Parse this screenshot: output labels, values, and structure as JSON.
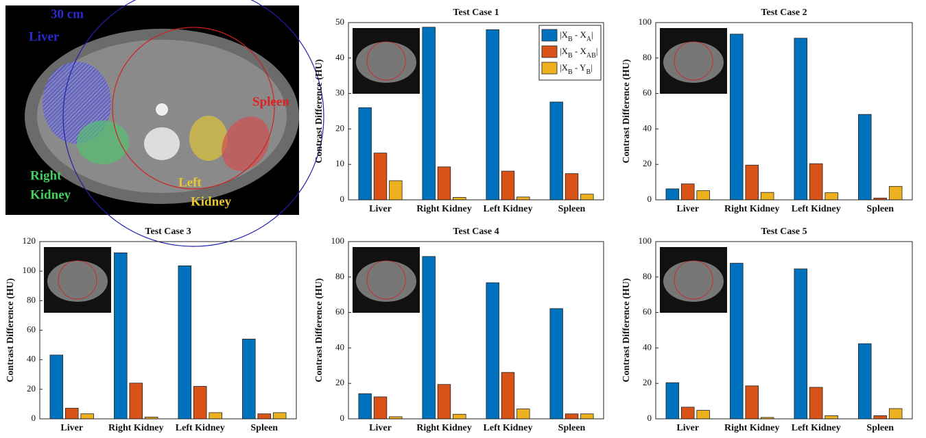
{
  "ct_image": {
    "scale_label": "30 cm",
    "labels": {
      "liver": [
        "Liver"
      ],
      "spleen": [
        "Spleen"
      ],
      "right_kidney": [
        "Right",
        "Kidney"
      ],
      "left_kidney": [
        "Left",
        "Kidney"
      ]
    }
  },
  "chart_data": [
    {
      "type": "bar",
      "title": "Test Case 1",
      "ylabel": "Contrast Difference (HU)",
      "categories": [
        "Liver",
        "Right Kidney",
        "Left Kidney",
        "Spleen"
      ],
      "ylim": [
        0,
        50
      ],
      "yticks": [
        0,
        10,
        20,
        30,
        40,
        50
      ],
      "legend": "upper right",
      "series": [
        {
          "name": "|XB - XA|",
          "color": "#0072BD",
          "values": [
            26,
            48.7,
            48,
            27.6
          ]
        },
        {
          "name": "|XB - XAB|",
          "color": "#D95319",
          "values": [
            13.2,
            9.3,
            8.1,
            7.4
          ]
        },
        {
          "name": "|XB - YB|",
          "color": "#EDB120",
          "values": [
            5.4,
            0.7,
            0.8,
            1.6
          ]
        }
      ]
    },
    {
      "type": "bar",
      "title": "Test Case 2",
      "ylabel": "Contrast Difference (HU)",
      "categories": [
        "Liver",
        "Right Kidney",
        "Left Kidney",
        "Spleen"
      ],
      "ylim": [
        0,
        100
      ],
      "yticks": [
        0,
        20,
        40,
        60,
        80,
        100
      ],
      "series": [
        {
          "color": "#0072BD",
          "values": [
            6.2,
            93.5,
            91.2,
            48.2
          ]
        },
        {
          "color": "#D95319",
          "values": [
            9,
            19.6,
            20.4,
            1
          ]
        },
        {
          "color": "#EDB120",
          "values": [
            5.2,
            4.2,
            4,
            7.6
          ]
        }
      ]
    },
    {
      "type": "bar",
      "title": "Test Case 3",
      "ylabel": "Contrast Difference (HU)",
      "categories": [
        "Liver",
        "Right Kidney",
        "Left Kidney",
        "Spleen"
      ],
      "ylim": [
        0,
        120
      ],
      "yticks": [
        0,
        20,
        40,
        60,
        80,
        100,
        120
      ],
      "series": [
        {
          "color": "#0072BD",
          "values": [
            43.2,
            112.4,
            103.6,
            54
          ]
        },
        {
          "color": "#D95319",
          "values": [
            7.2,
            24.2,
            22,
            3.4
          ]
        },
        {
          "color": "#EDB120",
          "values": [
            3.4,
            1.2,
            4.2,
            4.2
          ]
        }
      ]
    },
    {
      "type": "bar",
      "title": "Test Case 4",
      "ylabel": "Contrast Difference (HU)",
      "categories": [
        "Liver",
        "Right Kidney",
        "Left Kidney",
        "Spleen"
      ],
      "ylim": [
        0,
        100
      ],
      "yticks": [
        0,
        20,
        40,
        60,
        80,
        100
      ],
      "series": [
        {
          "color": "#0072BD",
          "values": [
            14.2,
            91.6,
            76.8,
            62.2
          ]
        },
        {
          "color": "#D95319",
          "values": [
            12.4,
            19.4,
            26.2,
            2.8
          ]
        },
        {
          "color": "#EDB120",
          "values": [
            1.2,
            2.6,
            5.6,
            2.8
          ]
        }
      ]
    },
    {
      "type": "bar",
      "title": "Test Case 5",
      "ylabel": "Contrast Difference (HU)",
      "categories": [
        "Liver",
        "Right Kidney",
        "Left Kidney",
        "Spleen"
      ],
      "ylim": [
        0,
        100
      ],
      "yticks": [
        0,
        20,
        40,
        60,
        80,
        100
      ],
      "series": [
        {
          "color": "#0072BD",
          "values": [
            20.4,
            87.8,
            84.6,
            42.4
          ]
        },
        {
          "color": "#D95319",
          "values": [
            6.6,
            18.6,
            17.8,
            1.8
          ]
        },
        {
          "color": "#EDB120",
          "values": [
            4.8,
            0.8,
            1.8,
            5.8
          ]
        }
      ]
    }
  ]
}
